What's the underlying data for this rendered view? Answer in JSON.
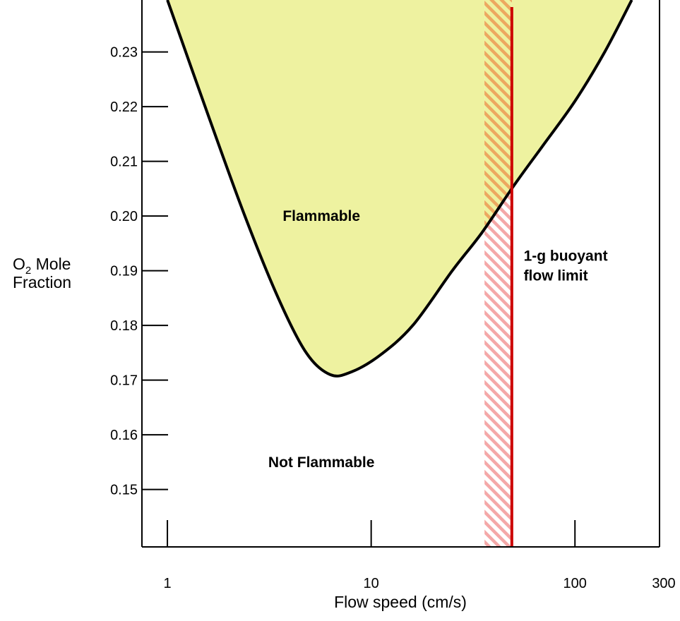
{
  "chart_data": {
    "type": "area",
    "xscale": "log",
    "xlim": [
      0.75,
      260
    ],
    "ylim": [
      0.1395,
      0.2395
    ],
    "x_ticks": [
      1,
      10,
      100,
      300
    ],
    "x_tick_labels": [
      "1",
      "10",
      "100",
      "300"
    ],
    "y_ticks": [
      0.15,
      0.16,
      0.17,
      0.18,
      0.19,
      0.2,
      0.21,
      0.22,
      0.23
    ],
    "y_tick_labels": [
      "0.15",
      "0.16",
      "0.17",
      "0.18",
      "0.19",
      "0.20",
      "0.21",
      "0.22",
      "0.23"
    ],
    "xlabel": "Flow speed (cm/s)",
    "ylabel_line1_main": "O",
    "ylabel_line1_sub": "2",
    "ylabel_line1_rest": " Mole",
    "ylabel_line2": "Fraction",
    "grid": false,
    "boundary_curve": {
      "x": [
        1.0,
        1.6,
        2.4,
        3.5,
        4.8,
        6.3,
        8.0,
        11.0,
        16.0,
        25.0,
        35.0,
        50.0,
        70.0,
        100.0,
        140.0,
        190.0
      ],
      "y": [
        0.2395,
        0.218,
        0.2,
        0.185,
        0.175,
        0.171,
        0.1715,
        0.1745,
        0.18,
        0.19,
        0.197,
        0.2055,
        0.213,
        0.221,
        0.23,
        0.2395
      ]
    },
    "regions": [
      {
        "label": "Flammable",
        "x": 5.7,
        "y": 0.2
      },
      {
        "label": "Not Flammable",
        "x": 5.7,
        "y": 0.155
      }
    ],
    "vertical_limit": {
      "x": 49,
      "band": [
        36,
        49
      ],
      "label_line1": "1-g buoyant",
      "label_line2": "flow limit",
      "label_x": 56,
      "label_y": 0.19
    },
    "colors": {
      "flammable_fill": "#eef2a0",
      "curve": "#000000",
      "limit_line": "#cc0000",
      "hatch_band": "#f4a8a8",
      "hatch_band_overlap": "#eda860"
    }
  }
}
